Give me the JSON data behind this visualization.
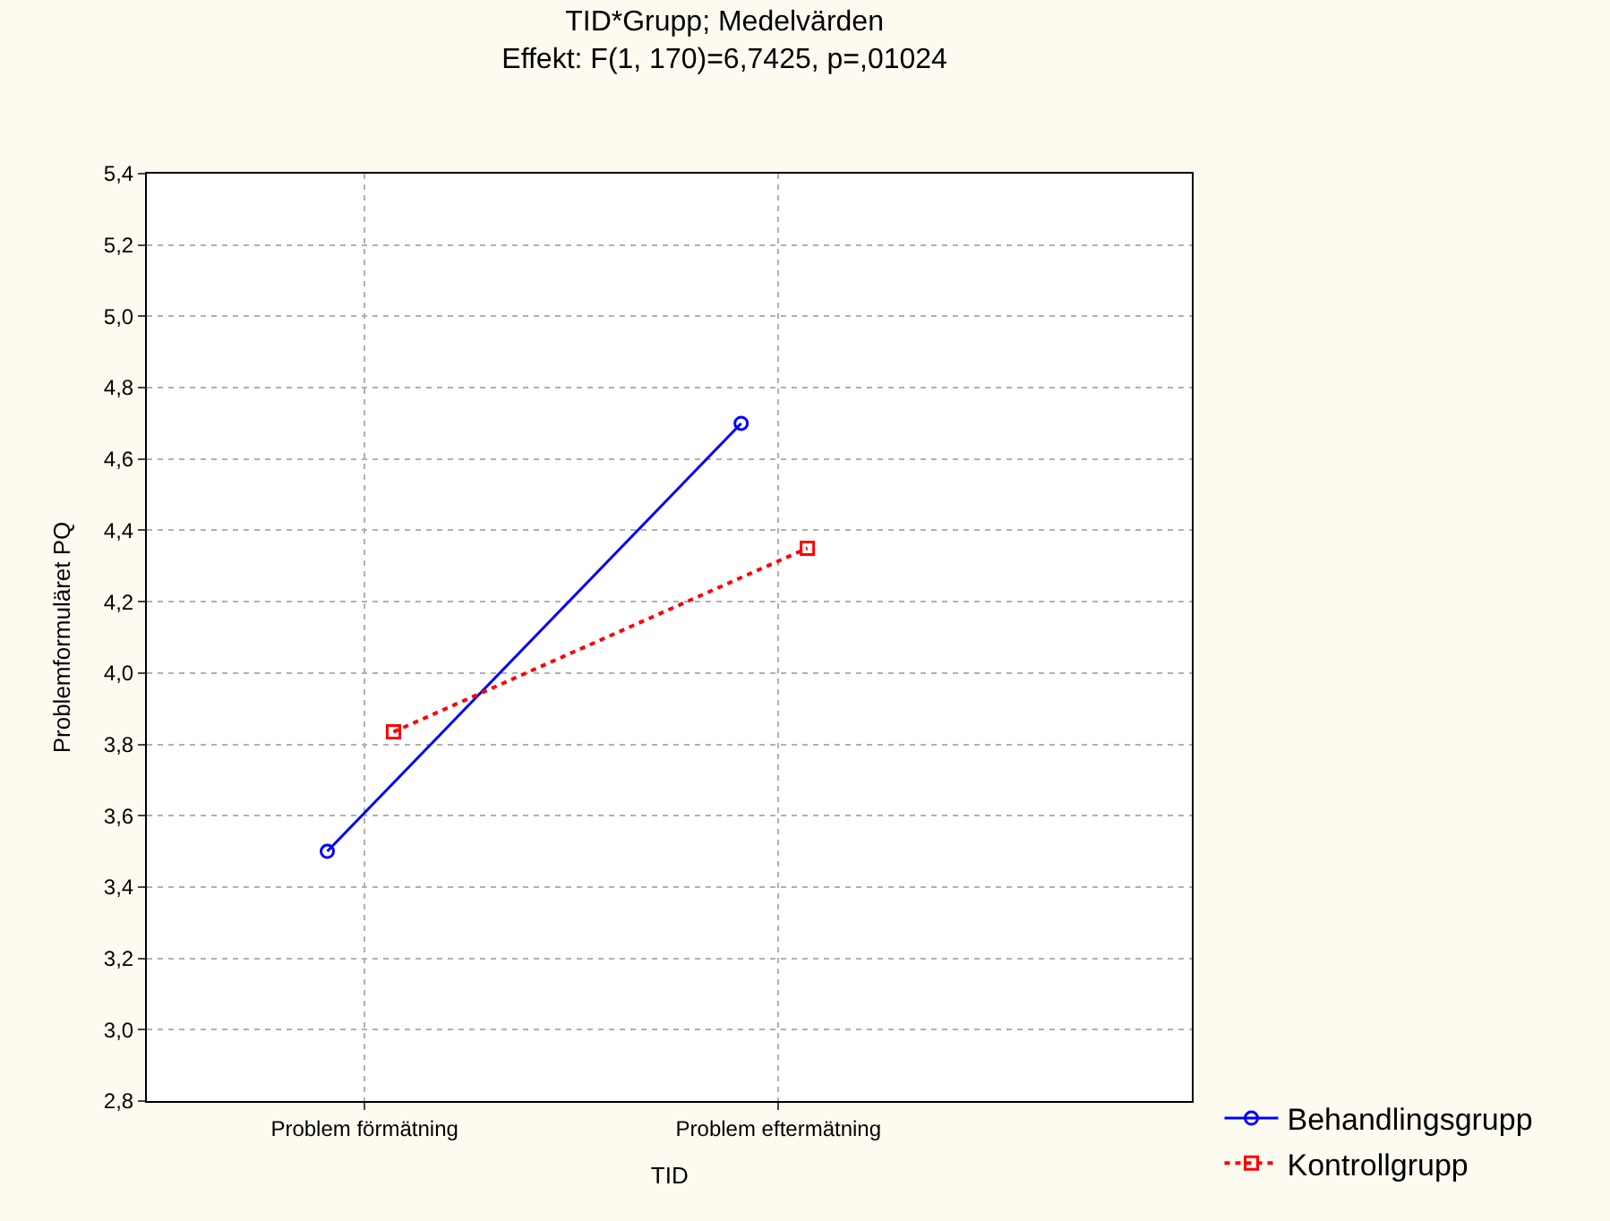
{
  "chart_data": {
    "type": "line",
    "title": "TID*Grupp; Medelvärden",
    "subtitle": "Effekt: F(1, 170)=6,7425, p=,01024",
    "xlabel": "TID",
    "ylabel": "Problemformuläret PQ",
    "categories": [
      "Problem förmätning",
      "Problem eftermätning"
    ],
    "series": [
      {
        "name": "Behandlingsgrupp",
        "color": "#0000ff",
        "values": [
          3.5,
          4.7
        ],
        "marker": "circle",
        "line_style": "solid"
      },
      {
        "name": "Kontrollgrupp",
        "color": "#ff0000",
        "values": [
          3.835,
          4.35
        ],
        "marker": "square",
        "line_style": "dotted"
      }
    ],
    "ylim": [
      2.8,
      5.4
    ],
    "yticks": [
      {
        "value": 2.8,
        "label": "2,8"
      },
      {
        "value": 3.0,
        "label": "3,0"
      },
      {
        "value": 3.2,
        "label": "3,2"
      },
      {
        "value": 3.4,
        "label": "3,4"
      },
      {
        "value": 3.6,
        "label": "3,6"
      },
      {
        "value": 3.8,
        "label": "3,8"
      },
      {
        "value": 4.0,
        "label": "4,0"
      },
      {
        "value": 4.2,
        "label": "4,2"
      },
      {
        "value": 4.4,
        "label": "4,4"
      },
      {
        "value": 4.6,
        "label": "4,6"
      },
      {
        "value": 4.8,
        "label": "4,8"
      },
      {
        "value": 5.0,
        "label": "5,0"
      },
      {
        "value": 5.2,
        "label": "5,2"
      },
      {
        "value": 5.4,
        "label": "5,4"
      }
    ],
    "grid": true,
    "legend": "bottom right"
  }
}
